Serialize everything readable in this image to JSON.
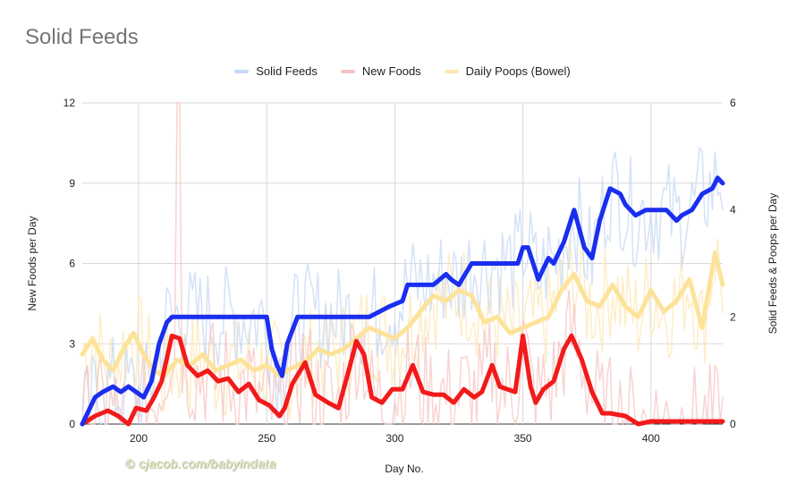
{
  "chart_data": {
    "type": "line",
    "title": "Solid Feeds",
    "xlabel": "Day No.",
    "ylabel_left": "New Foods per Day",
    "ylabel_right": "Solid Feeds & Poops per Day",
    "xlim": [
      178,
      428
    ],
    "ylim_left": [
      0,
      12
    ],
    "ylim_right": [
      0,
      6
    ],
    "x_ticks": [
      200,
      250,
      300,
      350,
      400
    ],
    "y_ticks_left": [
      0,
      3,
      6,
      9,
      12
    ],
    "y_ticks_right": [
      0,
      2,
      4,
      6
    ],
    "grid": true,
    "legend_position": "top",
    "watermark": "© cjacob.com/babyindata",
    "series": [
      {
        "name": "Solid Feeds",
        "axis": "right",
        "color": "#1a2ef0",
        "light_color": "#c6d8f5",
        "x": [
          178,
          183,
          186,
          190,
          193,
          196,
          199,
          202,
          205,
          208,
          211,
          213,
          217,
          226,
          240,
          250,
          252,
          254,
          256,
          258,
          262,
          268,
          278,
          290,
          298,
          303,
          305,
          310,
          315,
          320,
          322,
          325,
          330,
          335,
          340,
          348,
          350,
          352,
          354,
          356,
          360,
          362,
          366,
          370,
          374,
          377,
          380,
          384,
          388,
          390,
          394,
          398,
          402,
          406,
          410,
          412,
          416,
          420,
          424,
          426,
          428
        ],
        "values": [
          0,
          0.5,
          0.6,
          0.7,
          0.6,
          0.7,
          0.6,
          0.5,
          0.8,
          1.5,
          1.9,
          2,
          2,
          2,
          2,
          2,
          1.4,
          1.1,
          0.9,
          1.5,
          2,
          2,
          2,
          2,
          2.2,
          2.3,
          2.6,
          2.6,
          2.6,
          2.8,
          2.7,
          2.6,
          3,
          3,
          3,
          3,
          3.3,
          3.3,
          3,
          2.7,
          3.1,
          3,
          3.4,
          4,
          3.3,
          3.1,
          3.8,
          4.4,
          4.3,
          4.1,
          3.9,
          4,
          4,
          4,
          3.8,
          3.9,
          4,
          4.3,
          4.4,
          4.6,
          4.5
        ]
      },
      {
        "name": "New Foods",
        "axis": "left",
        "color": "#f21a1a",
        "light_color": "#f7c4c4",
        "x": [
          178,
          183,
          188,
          192,
          196,
          199,
          203,
          206,
          209,
          213,
          216,
          219,
          223,
          227,
          231,
          235,
          239,
          243,
          247,
          251,
          255,
          257,
          260,
          265,
          269,
          274,
          278,
          282,
          285,
          288,
          291,
          295,
          299,
          303,
          307,
          311,
          315,
          319,
          323,
          327,
          331,
          334,
          338,
          341,
          344,
          347,
          350,
          353,
          355,
          358,
          362,
          366,
          369,
          373,
          377,
          381,
          384,
          390,
          395,
          400,
          410,
          420,
          428
        ],
        "values": [
          0,
          0.3,
          0.5,
          0.3,
          0,
          0.6,
          0.5,
          1,
          1.6,
          3.3,
          3.2,
          2.2,
          1.8,
          2,
          1.6,
          1.7,
          1.2,
          1.5,
          0.9,
          0.7,
          0.3,
          0.6,
          1.5,
          2.3,
          1.1,
          0.8,
          0.6,
          2,
          3.1,
          2.6,
          1,
          0.8,
          1.3,
          1.3,
          2.2,
          1.2,
          1.1,
          1.1,
          0.8,
          1.3,
          1,
          1.2,
          2.2,
          1.4,
          1.3,
          1.2,
          3.3,
          1.4,
          0.8,
          1.3,
          1.6,
          2.8,
          3.3,
          2.4,
          1.2,
          0.4,
          0.4,
          0.3,
          0,
          0.1,
          0.1,
          0.1,
          0.1
        ]
      },
      {
        "name": "Daily Poops (Bowel)",
        "axis": "right",
        "color": "#fde39a",
        "light_color": "#fde7b4",
        "x": [
          178,
          182,
          186,
          190,
          194,
          198,
          202,
          206,
          210,
          215,
          220,
          225,
          230,
          235,
          240,
          245,
          250,
          255,
          258,
          262,
          266,
          270,
          275,
          280,
          285,
          290,
          295,
          300,
          305,
          310,
          315,
          320,
          325,
          330,
          335,
          340,
          345,
          350,
          355,
          360,
          365,
          370,
          375,
          380,
          385,
          390,
          395,
          400,
          405,
          410,
          415,
          420,
          425,
          428
        ],
        "values": [
          1.3,
          1.6,
          1.2,
          1,
          1.4,
          1.7,
          1.3,
          1,
          0.9,
          1.2,
          1.1,
          1.3,
          1,
          1.1,
          1.2,
          1,
          1.1,
          0.9,
          1,
          1.1,
          1.2,
          1.4,
          1.3,
          1.4,
          1.6,
          1.8,
          1.7,
          1.6,
          1.8,
          2.1,
          2.4,
          2.3,
          2.5,
          2.4,
          1.9,
          2,
          1.7,
          1.8,
          1.9,
          2,
          2.5,
          2.8,
          2.3,
          2.2,
          2.6,
          2.2,
          2,
          2.5,
          2.1,
          2.3,
          2.7,
          1.8,
          3.2,
          2.6
        ]
      }
    ]
  }
}
